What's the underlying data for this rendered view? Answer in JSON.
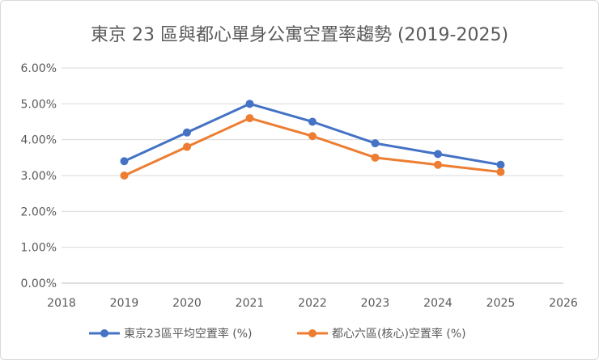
{
  "chart_data": {
    "type": "line",
    "title": "東京 23 區與都心單身公寓空置率趨勢 (2019-2025)",
    "xlabel": "",
    "ylabel": "",
    "xlim": [
      2018,
      2026
    ],
    "ylim": [
      0,
      6
    ],
    "x_ticks": [
      "2018",
      "2019",
      "2020",
      "2021",
      "2022",
      "2023",
      "2024",
      "2025",
      "2026"
    ],
    "y_ticks": [
      "0.00%",
      "1.00%",
      "2.00%",
      "3.00%",
      "4.00%",
      "5.00%",
      "6.00%"
    ],
    "grid": "horizontal",
    "legend_position": "bottom",
    "x": [
      2019,
      2020,
      2021,
      2022,
      2023,
      2024,
      2025
    ],
    "series": [
      {
        "name": "東京23區平均空置率 (%)",
        "color": "#4472c4",
        "values": [
          3.4,
          4.2,
          5.0,
          4.5,
          3.9,
          3.6,
          3.3
        ]
      },
      {
        "name": "都心六區(核心)空置率 (%)",
        "color": "#ed7d31",
        "values": [
          3.0,
          3.8,
          4.6,
          4.1,
          3.5,
          3.3,
          3.1
        ]
      }
    ]
  }
}
